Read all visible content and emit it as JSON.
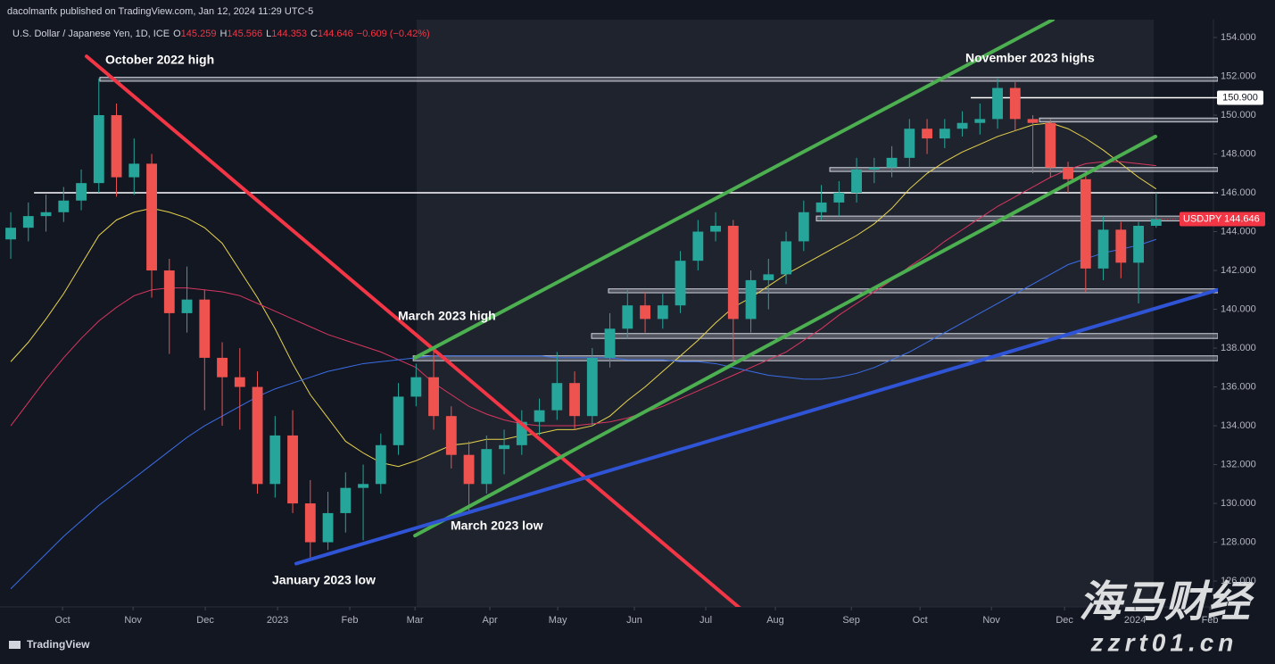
{
  "header": {
    "publisher": "dacolmanfx published on TradingView.com, Jan 12, 2024 11:29 UTC-5",
    "symbol": "U.S. Dollar / Japanese Yen, 1D, ICE",
    "quote": [
      {
        "key": "O",
        "value": "145.259"
      },
      {
        "key": "H",
        "value": "145.566"
      },
      {
        "key": "L",
        "value": "144.353"
      },
      {
        "key": "C",
        "value": "144.646"
      }
    ],
    "change": "−0.609 (−0.42%)"
  },
  "footer": {
    "logo": "TradingView",
    "watermark": "海马财经",
    "watermark_url": "zzrt01.cn"
  },
  "chart_data": {
    "type": "candlestick",
    "categories": [
      null,
      null,
      null,
      null,
      null,
      null,
      null,
      null,
      null,
      null,
      null,
      null,
      null,
      null,
      null,
      null,
      null,
      null,
      null,
      null,
      null,
      null,
      null,
      null,
      null,
      null,
      null,
      null,
      null,
      null,
      null,
      null,
      null,
      null,
      null,
      null,
      null,
      null,
      null,
      null,
      null,
      null,
      null,
      null,
      null,
      null,
      null,
      null,
      null,
      null,
      null,
      null,
      null,
      null,
      null,
      null,
      null,
      null,
      null,
      null,
      null,
      null,
      null,
      null,
      null,
      null
    ],
    "open": [
      143.6,
      144.2,
      144.8,
      145.0,
      145.6,
      146.5,
      150.0,
      146.8,
      147.5,
      142.0,
      139.8,
      140.5,
      137.5,
      136.5,
      136.0,
      131.0,
      133.5,
      130.0,
      128.0,
      129.5,
      130.8,
      131.0,
      133.0,
      135.5,
      136.5,
      134.5,
      132.5,
      131.0,
      132.8,
      133.0,
      134.2,
      134.8,
      136.2,
      134.5,
      137.5,
      139.0,
      140.2,
      139.5,
      140.2,
      142.5,
      144.0,
      144.3,
      139.5,
      141.5,
      141.8,
      143.5,
      145.0,
      145.5,
      146.0,
      147.2,
      147.3,
      147.8,
      149.3,
      148.8,
      149.3,
      149.6,
      149.8,
      151.4,
      149.8,
      149.6,
      147.3,
      146.7,
      142.1,
      144.1,
      142.4,
      144.3
    ],
    "high": [
      145.0,
      145.5,
      145.9,
      146.3,
      147.2,
      151.9,
      150.6,
      148.8,
      148.0,
      142.6,
      142.2,
      141.0,
      138.3,
      138.0,
      136.8,
      134.5,
      134.8,
      131.2,
      130.6,
      131.6,
      132.0,
      133.6,
      136.2,
      137.2,
      137.9,
      135.0,
      133.2,
      133.5,
      133.8,
      134.8,
      135.4,
      137.8,
      136.8,
      138.0,
      139.8,
      141.0,
      140.9,
      140.8,
      143.0,
      144.6,
      145.0,
      144.6,
      142.0,
      142.6,
      144.0,
      145.6,
      146.4,
      146.6,
      147.8,
      147.8,
      148.4,
      149.8,
      149.8,
      149.8,
      150.2,
      150.6,
      151.9,
      151.7,
      150.0,
      149.8,
      147.6,
      147.0,
      144.8,
      144.5,
      144.5,
      146.0
    ],
    "low": [
      142.6,
      143.5,
      144.0,
      144.5,
      145.1,
      146.0,
      145.8,
      145.9,
      140.6,
      137.7,
      138.8,
      134.8,
      134.0,
      133.8,
      130.5,
      130.3,
      129.5,
      127.2,
      127.6,
      128.5,
      128.1,
      130.5,
      132.5,
      135.0,
      133.8,
      131.8,
      129.6,
      130.5,
      131.5,
      132.5,
      133.5,
      134.3,
      133.8,
      134.0,
      137.0,
      138.5,
      138.8,
      139.0,
      139.8,
      142.0,
      143.5,
      137.3,
      138.8,
      140.0,
      141.3,
      143.0,
      144.6,
      144.8,
      145.5,
      146.5,
      146.8,
      147.3,
      148.0,
      148.3,
      148.9,
      149.0,
      149.3,
      149.2,
      147.0,
      146.8,
      146.0,
      140.9,
      141.5,
      141.6,
      140.3,
      144.2
    ],
    "close": [
      144.2,
      144.8,
      145.0,
      145.6,
      146.5,
      150.0,
      146.8,
      147.5,
      142.0,
      139.8,
      140.5,
      137.5,
      136.5,
      136.0,
      131.0,
      133.5,
      130.0,
      128.0,
      129.5,
      130.8,
      131.0,
      133.0,
      135.5,
      136.5,
      134.5,
      132.5,
      131.0,
      132.8,
      133.0,
      134.2,
      134.8,
      136.2,
      134.5,
      137.5,
      139.0,
      140.2,
      139.5,
      140.2,
      142.5,
      144.0,
      144.3,
      139.5,
      141.5,
      141.8,
      143.5,
      145.0,
      145.5,
      146.0,
      147.2,
      147.3,
      147.8,
      149.3,
      148.8,
      149.3,
      149.6,
      149.8,
      151.4,
      149.8,
      149.6,
      147.3,
      146.7,
      142.1,
      144.1,
      142.4,
      144.3,
      144.646
    ],
    "up_color": "#26a69a",
    "down_color": "#ef5350",
    "series": [
      {
        "color": "#e8d44d",
        "values": [
          137.3,
          138.3,
          139.5,
          140.8,
          142.3,
          143.8,
          144.6,
          145.0,
          145.2,
          145.0,
          144.7,
          144.2,
          143.4,
          142.0,
          140.6,
          139.0,
          137.2,
          135.6,
          134.4,
          133.2,
          132.6,
          132.1,
          131.9,
          132.2,
          132.6,
          133.0,
          133.1,
          133.3,
          133.3,
          133.5,
          133.6,
          133.8,
          133.8,
          134.0,
          134.5,
          135.3,
          136.0,
          136.8,
          137.6,
          138.4,
          139.3,
          140.1,
          140.6,
          141.2,
          141.8,
          142.3,
          142.8,
          143.3,
          143.8,
          144.4,
          145.2,
          146.2,
          147.0,
          147.6,
          148.1,
          148.5,
          148.9,
          149.2,
          149.5,
          149.6,
          149.3,
          148.8,
          148.2,
          147.5,
          146.8,
          146.2
        ]
      },
      {
        "color": "#d9365f",
        "values": [
          134.0,
          135.2,
          136.4,
          137.5,
          138.5,
          139.4,
          140.1,
          140.7,
          141.0,
          141.1,
          141.1,
          141.0,
          140.9,
          140.7,
          140.3,
          139.9,
          139.5,
          139.1,
          138.7,
          138.4,
          138.1,
          137.8,
          137.4,
          137.0,
          136.2,
          135.6,
          135.0,
          134.6,
          134.3,
          134.1,
          134.0,
          134.0,
          134.0,
          134.1,
          134.2,
          134.4,
          134.7,
          135.0,
          135.4,
          135.8,
          136.2,
          136.6,
          137.0,
          137.4,
          137.8,
          138.4,
          139.0,
          139.7,
          140.3,
          140.9,
          141.5,
          142.2,
          142.8,
          143.5,
          144.1,
          144.7,
          145.3,
          145.8,
          146.3,
          146.8,
          147.2,
          147.5,
          147.6,
          147.6,
          147.5,
          147.4
        ]
      },
      {
        "color": "#3a6ee8",
        "values": [
          125.6,
          126.5,
          127.4,
          128.3,
          129.1,
          129.9,
          130.6,
          131.3,
          132.0,
          132.7,
          133.4,
          134.0,
          134.5,
          135.0,
          135.5,
          135.9,
          136.2,
          136.5,
          136.8,
          137.0,
          137.2,
          137.3,
          137.4,
          137.5,
          137.6,
          137.6,
          137.6,
          137.6,
          137.6,
          137.6,
          137.6,
          137.5,
          137.5,
          137.5,
          137.5,
          137.4,
          137.4,
          137.4,
          137.3,
          137.3,
          137.2,
          137.0,
          136.8,
          136.6,
          136.5,
          136.4,
          136.4,
          136.5,
          136.7,
          137.0,
          137.4,
          137.8,
          138.3,
          138.8,
          139.3,
          139.8,
          140.3,
          140.8,
          141.3,
          141.8,
          142.3,
          142.6,
          142.9,
          143.1,
          143.3,
          143.6
        ]
      }
    ],
    "trendlines": [
      {
        "color": "#f23645",
        "x": [
          4.3,
          41.42
        ],
        "y": [
          153.03,
          124.57
        ]
      },
      {
        "color": "#4caf50",
        "x": [
          22.94,
          59.14
        ],
        "y": [
          137.5,
          154.92
        ]
      },
      {
        "color": "#4caf50",
        "x": [
          22.94,
          64.96
        ],
        "y": [
          128.34,
          148.9
        ]
      },
      {
        "color": "#2f54d6",
        "x": [
          16.2,
          68.5
        ],
        "y": [
          126.9,
          141.0
        ]
      }
    ],
    "zones": [
      {
        "x0": 5.06,
        "top": 151.95,
        "bottom": 151.75
      },
      {
        "x0": 58.38,
        "top": 149.85,
        "bottom": 149.65
      },
      {
        "x0": 46.48,
        "top": 147.3,
        "bottom": 147.1
      },
      {
        "x0": 45.72,
        "top": 144.8,
        "bottom": 144.55
      },
      {
        "x0": 33.92,
        "top": 141.05,
        "bottom": 140.85
      },
      {
        "x0": 32.96,
        "top": 138.75,
        "bottom": 138.5
      },
      {
        "x0": 22.84,
        "top": 137.6,
        "bottom": 137.35
      }
    ],
    "hlines": [
      {
        "x0": 1.32,
        "value": 146.0
      },
      {
        "x0": 54.48,
        "value": 150.9,
        "label": "150.900"
      }
    ],
    "annotations": [
      "October 2022 high",
      "November 2023 highs",
      "March 2023 high",
      "March 2023 low",
      "January 2023 low"
    ],
    "last_price": {
      "symbol": "USDJPY",
      "value": 144.646,
      "color": "#f23645"
    },
    "xlim": [
      -0.61,
      68.25
    ],
    "ylim": [
      124.67,
      154.92
    ],
    "xticks": [
      {
        "value": 2.94,
        "label": "Oct"
      },
      {
        "value": 6.94,
        "label": "Nov"
      },
      {
        "value": 11.04,
        "label": "Dec"
      },
      {
        "value": 15.14,
        "label": "2023"
      },
      {
        "value": 19.24,
        "label": "Feb"
      },
      {
        "value": 22.94,
        "label": "Mar"
      },
      {
        "value": 27.19,
        "label": "Apr"
      },
      {
        "value": 31.04,
        "label": "May"
      },
      {
        "value": 35.39,
        "label": "Jun"
      },
      {
        "value": 39.44,
        "label": "Jul"
      },
      {
        "value": 43.39,
        "label": "Aug"
      },
      {
        "value": 47.7,
        "label": "Sep"
      },
      {
        "value": 51.6,
        "label": "Oct"
      },
      {
        "value": 55.65,
        "label": "Nov"
      },
      {
        "value": 59.8,
        "label": "Dec"
      },
      {
        "value": 63.8,
        "label": "2024"
      },
      {
        "value": 68.05,
        "label": "Feb"
      }
    ],
    "yticks": [
      {
        "value": 126,
        "label": "126.000"
      },
      {
        "value": 128,
        "label": "128.000"
      },
      {
        "value": 130,
        "label": "130.000"
      },
      {
        "value": 132,
        "label": "132.000"
      },
      {
        "value": 134,
        "label": "134.000"
      },
      {
        "value": 136,
        "label": "136.000"
      },
      {
        "value": 138,
        "label": "138.000"
      },
      {
        "value": 140,
        "label": "140.000"
      },
      {
        "value": 142,
        "label": "142.000"
      },
      {
        "value": 144,
        "label": "144.000"
      },
      {
        "value": 146,
        "label": "146.000"
      },
      {
        "value": 148,
        "label": "148.000"
      },
      {
        "value": 150,
        "label": "150.000"
      },
      {
        "value": 152,
        "label": "152.000"
      },
      {
        "value": 154,
        "label": "154.000"
      }
    ],
    "grid": false
  }
}
